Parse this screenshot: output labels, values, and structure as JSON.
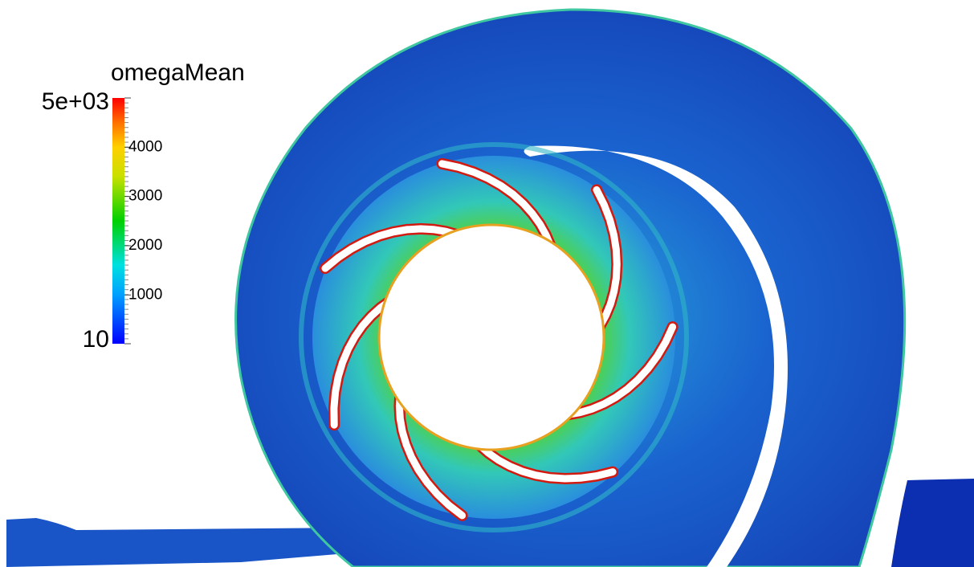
{
  "colorbar": {
    "title": "omegaMean",
    "min": 10,
    "max": {
      "value": 5000,
      "label": "5e+03"
    },
    "ticks": [
      1000,
      2000,
      3000,
      4000
    ]
  }
}
